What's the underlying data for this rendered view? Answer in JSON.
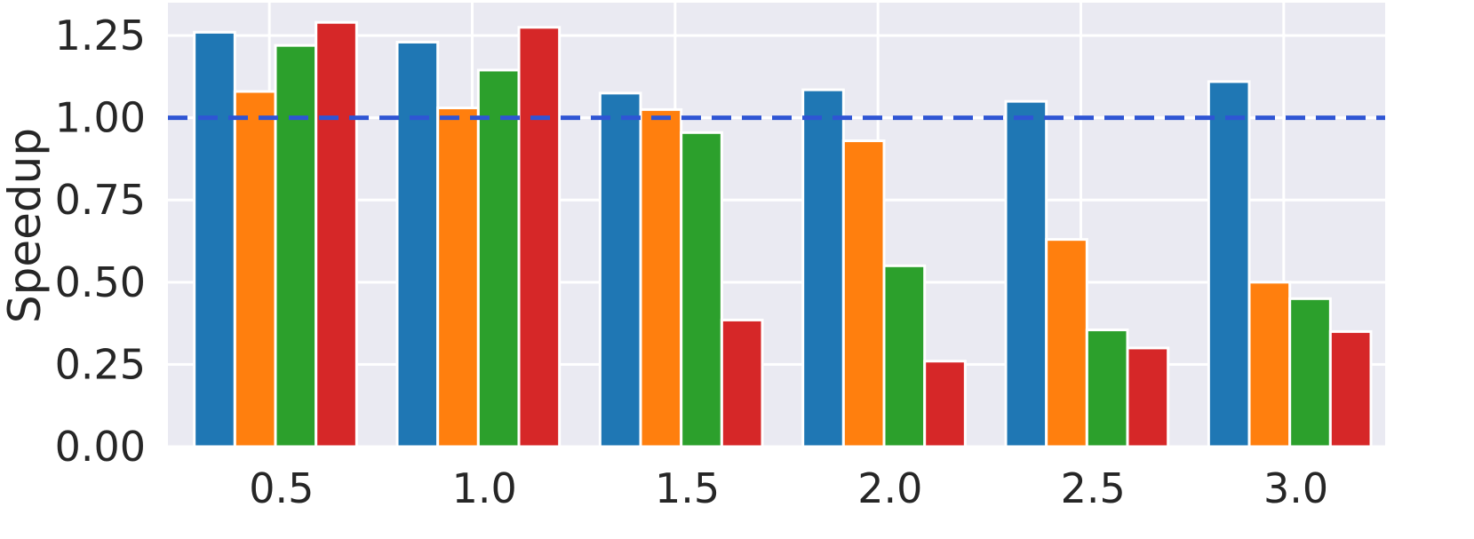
{
  "chart_data": {
    "type": "bar",
    "title": "",
    "xlabel": "",
    "ylabel": "Speedup",
    "categories": [
      "0.5",
      "1.0",
      "1.5",
      "2.0",
      "2.5",
      "3.0"
    ],
    "series": [
      {
        "color": "#1f77b4",
        "values": [
          1.26,
          1.23,
          1.075,
          1.085,
          1.05,
          1.11
        ]
      },
      {
        "color": "#ff7f0e",
        "values": [
          1.08,
          1.03,
          1.025,
          0.93,
          0.63,
          0.5
        ]
      },
      {
        "color": "#2ca02c",
        "values": [
          1.22,
          1.145,
          0.955,
          0.55,
          0.355,
          0.45
        ]
      },
      {
        "color": "#d62728",
        "values": [
          1.29,
          1.275,
          0.385,
          0.26,
          0.3,
          0.35
        ]
      }
    ],
    "ylim": [
      0,
      1.35
    ],
    "yticks": [
      "0.00",
      "0.25",
      "0.50",
      "0.75",
      "1.00",
      "1.25"
    ],
    "reference_line": {
      "y": 1.0,
      "style": "dashed",
      "color": "#2f55d4"
    },
    "grid": true,
    "legend": "none",
    "background": "#eaeaf2"
  }
}
